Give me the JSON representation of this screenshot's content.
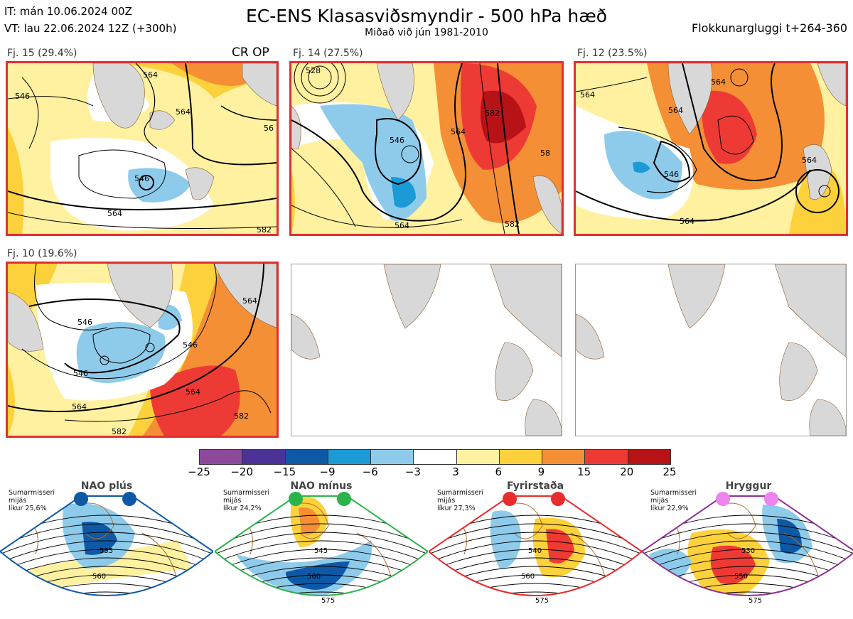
{
  "header": {
    "it_line": "IT: mán 10.06.2024 00Z",
    "vt_line": "VT: lau 22.06.2024 12Z  (+300h)",
    "title": "EC-ENS Klasasviðsmyndir - 500 hPa hæð",
    "subtitle": "Miðað við jún 1981-2010",
    "window": "Flokkunargluggi t+264-360"
  },
  "panels": [
    {
      "label": "Fj. 15 (29.4%)",
      "tag": "CR OP",
      "contours": [
        "546",
        "546",
        "564",
        "564",
        "564",
        "56",
        "582"
      ]
    },
    {
      "label": "Fj. 14 (27.5%)",
      "contours": [
        "528",
        "546",
        "564",
        "564",
        "582",
        "582",
        "58"
      ]
    },
    {
      "label": "Fj. 12 (23.5%)",
      "contours": [
        "564",
        "564",
        "546",
        "564",
        "564",
        "564"
      ]
    },
    {
      "label": "Fj. 10 (19.6%)",
      "contours": [
        "546",
        "546",
        "546",
        "564",
        "564",
        "564",
        "582",
        "582"
      ]
    }
  ],
  "colorbar": {
    "ticks": [
      "−25",
      "−20",
      "−15",
      "−9",
      "−6",
      "−3",
      "3",
      "6",
      "9",
      "15",
      "20",
      "25"
    ],
    "colors": [
      "#8d4a9b",
      "#4a3296",
      "#0e59a6",
      "#1b9ad6",
      "#8ecbeb",
      "#ffffff",
      "#fff1a0",
      "#fcd13b",
      "#f58f35",
      "#ee3a35",
      "#b71216"
    ]
  },
  "regimes": [
    {
      "name": "NAO plús",
      "desc": [
        "Sumarmisseri",
        "mijás",
        "líkur 25,6%"
      ],
      "dot_color": "#0e59a6",
      "border": "#0e59a6",
      "contours": [
        "535",
        "560"
      ]
    },
    {
      "name": "NAO mínus",
      "desc": [
        "Sumarmisseri",
        "mijás",
        "líkur 24,2%"
      ],
      "dot_color": "#2bb34b",
      "border": "#2bb34b",
      "contours": [
        "545",
        "560",
        "575"
      ]
    },
    {
      "name": "Fyrirstaða",
      "desc": [
        "Sumarmisseri",
        "mijás",
        "líkur 27,3%"
      ],
      "dot_color": "#e82c2c",
      "border": "#e82c2c",
      "contours": [
        "540",
        "560",
        "575"
      ]
    },
    {
      "name": "Hryggur",
      "desc": [
        "Sumarmisseri",
        "mijás",
        "líkur 22,9%"
      ],
      "dot_color": "#ee82ee",
      "border": "#8e3294",
      "contours": [
        "530",
        "550",
        "575"
      ]
    }
  ]
}
